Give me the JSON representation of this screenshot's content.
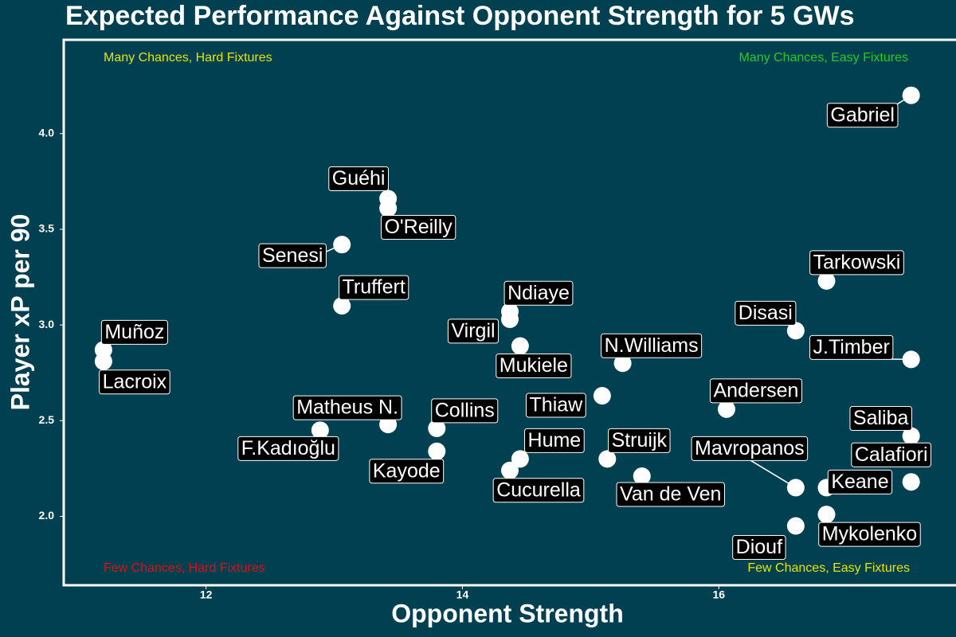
{
  "chart_data": {
    "type": "scatter",
    "title": "Expected Performance Against Opponent Strength for 5 GWs",
    "xlabel": "Opponent Strength",
    "ylabel": "Player xP per 90",
    "color": "#ffffff",
    "point_labels": [
      "Gabriel",
      "Guéhi",
      "O'Reilly",
      "Senesi",
      "Truffert",
      "Muñoz",
      "Lacroix",
      "Ndiaye",
      "Virgil",
      "Mukiele",
      "N.Williams",
      "Thiaw",
      "Tarkowski",
      "Disasi",
      "J.Timber",
      "Andersen",
      "Saliba",
      "Calafiori",
      "Keane",
      "Mavropanos",
      "Mykolenko",
      "Diouf",
      "Matheus N.",
      "F.Kadıoğlu",
      "Collins",
      "Kayode",
      "Hume",
      "Cucurella",
      "Struijk",
      "Van de Ven"
    ],
    "x": [
      17.5,
      13.42,
      13.42,
      13.06,
      13.06,
      11.2,
      11.2,
      14.37,
      14.37,
      14.45,
      15.25,
      15.09,
      16.84,
      16.6,
      17.5,
      16.06,
      17.5,
      17.5,
      16.84,
      16.6,
      16.84,
      16.6,
      13.42,
      12.89,
      13.8,
      13.8,
      14.45,
      14.37,
      15.13,
      15.4
    ],
    "values": [
      4.2,
      3.66,
      3.61,
      3.42,
      3.1,
      2.87,
      2.81,
      3.07,
      3.03,
      2.89,
      2.8,
      2.63,
      3.23,
      2.97,
      2.82,
      2.56,
      2.42,
      2.18,
      2.15,
      2.15,
      2.01,
      1.95,
      2.48,
      2.45,
      2.46,
      2.34,
      2.3,
      2.24,
      2.3,
      2.21
    ],
    "xlim": [
      10.89,
      17.85
    ],
    "ylim": [
      1.64,
      4.49
    ],
    "xticks": [
      12,
      14,
      16
    ],
    "yticks": [
      {
        "value": 2,
        "label": "2.0"
      },
      {
        "value": 2.5,
        "label": "2.5"
      },
      {
        "value": 3,
        "label": "3.0"
      },
      {
        "value": 3.5,
        "label": "3.5"
      },
      {
        "value": 4,
        "label": "4.0"
      }
    ],
    "annotations": [
      {
        "text": "Many Chances, Hard Fixtures",
        "color": "#e6e600"
      },
      {
        "text": "Many Chances, Easy Fixtures",
        "color": "#22cc22"
      },
      {
        "text": "Few Chances, Hard Fixtures",
        "color": "#dd1111"
      },
      {
        "text": "Few Chances, Easy Fixtures",
        "color": "#e6e600"
      }
    ]
  }
}
